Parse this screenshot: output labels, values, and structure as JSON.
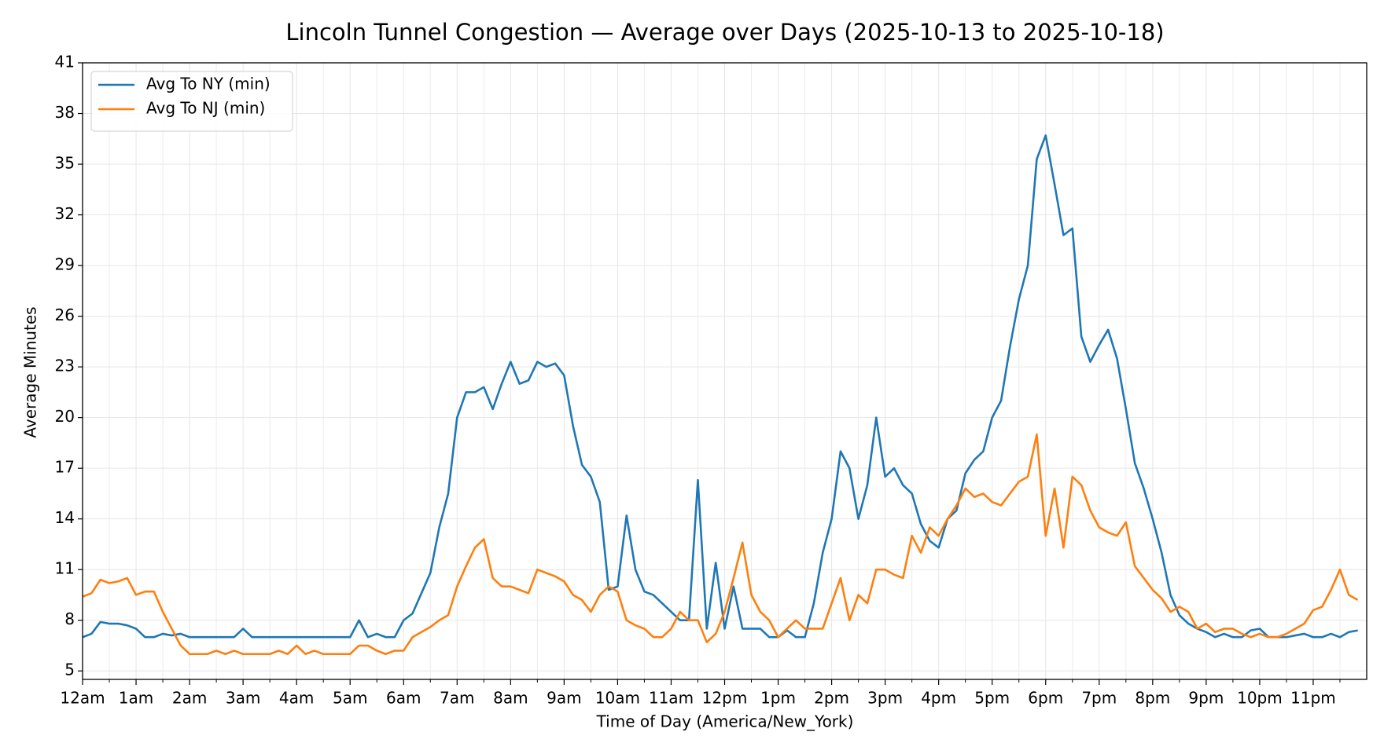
{
  "chart_data": {
    "type": "line",
    "title": "Lincoln Tunnel Congestion — Average over Days (2025-10-13 to 2025-10-18)",
    "xlabel": "Time of Day (America/New_York)",
    "ylabel": "Average Minutes",
    "x": [
      0,
      10,
      20,
      30,
      40,
      50,
      60,
      70,
      80,
      90,
      100,
      110,
      120,
      130,
      140,
      150,
      160,
      170,
      180,
      190,
      200,
      210,
      220,
      230,
      240,
      250,
      260,
      270,
      280,
      290,
      300,
      310,
      320,
      330,
      340,
      350,
      360,
      370,
      380,
      390,
      400,
      410,
      420,
      430,
      440,
      450,
      460,
      470,
      480,
      490,
      500,
      510,
      520,
      530,
      540,
      550,
      560,
      570,
      580,
      590,
      600,
      610,
      620,
      630,
      640,
      650,
      660,
      670,
      680,
      690,
      700,
      710,
      720,
      730,
      740,
      750,
      760,
      770,
      780,
      790,
      800,
      810,
      820,
      830,
      840,
      850,
      860,
      870,
      880,
      890,
      900,
      910,
      920,
      930,
      940,
      950,
      960,
      970,
      980,
      990,
      1000,
      1010,
      1020,
      1030,
      1040,
      1050,
      1060,
      1070,
      1080,
      1090,
      1100,
      1110,
      1120,
      1130,
      1140,
      1150,
      1160,
      1170,
      1180,
      1190,
      1200,
      1210,
      1220,
      1230,
      1240,
      1250,
      1260,
      1270,
      1280,
      1290,
      1300,
      1310,
      1320,
      1330,
      1340,
      1350,
      1360,
      1370,
      1380,
      1390,
      1400,
      1410,
      1420,
      1430
    ],
    "series": [
      {
        "name": "Avg To NY (min)",
        "color": "#1f77b4",
        "values": [
          7.0,
          7.2,
          7.9,
          7.8,
          7.8,
          7.7,
          7.5,
          7.0,
          7.0,
          7.2,
          7.1,
          7.2,
          7.0,
          7.0,
          7.0,
          7.0,
          7.0,
          7.0,
          7.5,
          7.0,
          7.0,
          7.0,
          7.0,
          7.0,
          7.0,
          7.0,
          7.0,
          7.0,
          7.0,
          7.0,
          7.0,
          8.0,
          7.0,
          7.2,
          7.0,
          7.0,
          8.0,
          8.4,
          9.6,
          10.8,
          13.5,
          15.5,
          20.0,
          21.5,
          21.5,
          21.8,
          20.5,
          22.0,
          23.3,
          22.0,
          22.2,
          23.3,
          23.0,
          23.2,
          22.5,
          19.5,
          17.2,
          16.5,
          15.0,
          9.8,
          10.0,
          14.2,
          11.0,
          9.7,
          9.5,
          9.0,
          8.5,
          8.0,
          8.0,
          16.3,
          7.5,
          11.4,
          7.5,
          10.0,
          7.5,
          7.5,
          7.5,
          7.0,
          7.0,
          7.4,
          7.0,
          7.0,
          9.0,
          12.0,
          14.0,
          18.0,
          17.0,
          14.0,
          16.0,
          20.0,
          16.5,
          17.0,
          16.0,
          15.5,
          13.7,
          12.7,
          12.3,
          14.0,
          14.5,
          16.7,
          17.5,
          18.0,
          20.0,
          21.0,
          24.2,
          27.0,
          29.0,
          35.3,
          36.7,
          33.8,
          30.8,
          31.2,
          24.8,
          23.3,
          24.3,
          25.2,
          23.5,
          20.5,
          17.3,
          15.8,
          14.0,
          12.0,
          9.5,
          8.3,
          7.8,
          7.5,
          7.3,
          7.0,
          7.2,
          7.0,
          7.0,
          7.4,
          7.5,
          7.0,
          7.0,
          7.0,
          7.1,
          7.2,
          7.0,
          7.0,
          7.2,
          7.0,
          7.3,
          7.4
        ]
      },
      {
        "name": "Avg To NJ (min)",
        "color": "#ff7f0e",
        "values": [
          9.4,
          9.6,
          10.4,
          10.2,
          10.3,
          10.5,
          9.5,
          9.7,
          9.7,
          8.5,
          7.5,
          6.5,
          6.0,
          6.0,
          6.0,
          6.2,
          6.0,
          6.2,
          6.0,
          6.0,
          6.0,
          6.0,
          6.2,
          6.0,
          6.5,
          6.0,
          6.2,
          6.0,
          6.0,
          6.0,
          6.0,
          6.5,
          6.5,
          6.2,
          6.0,
          6.2,
          6.2,
          7.0,
          7.3,
          7.6,
          8.0,
          8.3,
          10.0,
          11.2,
          12.3,
          12.8,
          10.5,
          10.0,
          10.0,
          9.8,
          9.6,
          11.0,
          10.8,
          10.6,
          10.3,
          9.5,
          9.2,
          8.5,
          9.5,
          10.0,
          9.7,
          8.0,
          7.7,
          7.5,
          7.0,
          7.0,
          7.5,
          8.5,
          8.0,
          8.0,
          6.7,
          7.2,
          8.5,
          10.5,
          12.6,
          9.5,
          8.5,
          8.0,
          7.0,
          7.5,
          8.0,
          7.5,
          7.5,
          7.5,
          9.0,
          10.5,
          8.0,
          9.5,
          9.0,
          11.0,
          11.0,
          10.7,
          10.5,
          13.0,
          12.0,
          13.5,
          13.0,
          14.0,
          14.8,
          15.8,
          15.3,
          15.5,
          15.0,
          14.8,
          15.5,
          16.2,
          16.5,
          19.0,
          13.0,
          15.8,
          12.3,
          16.5,
          16.0,
          14.5,
          13.5,
          13.2,
          13.0,
          13.8,
          11.2,
          10.5,
          9.8,
          9.3,
          8.5,
          8.8,
          8.5,
          7.5,
          7.8,
          7.3,
          7.5,
          7.5,
          7.2,
          7.0,
          7.2,
          7.0,
          7.0,
          7.2,
          7.5,
          7.8,
          8.6,
          8.8,
          9.8,
          11.0,
          9.5,
          9.2
        ]
      }
    ],
    "xlim": [
      0,
      1440
    ],
    "xticks": [
      {
        "value": 0,
        "label": "12am"
      },
      {
        "value": 60,
        "label": "1am"
      },
      {
        "value": 120,
        "label": "2am"
      },
      {
        "value": 180,
        "label": "3am"
      },
      {
        "value": 240,
        "label": "4am"
      },
      {
        "value": 300,
        "label": "5am"
      },
      {
        "value": 360,
        "label": "6am"
      },
      {
        "value": 420,
        "label": "7am"
      },
      {
        "value": 480,
        "label": "8am"
      },
      {
        "value": 540,
        "label": "9am"
      },
      {
        "value": 600,
        "label": "10am"
      },
      {
        "value": 660,
        "label": "11am"
      },
      {
        "value": 720,
        "label": "12pm"
      },
      {
        "value": 780,
        "label": "1pm"
      },
      {
        "value": 840,
        "label": "2pm"
      },
      {
        "value": 900,
        "label": "3pm"
      },
      {
        "value": 960,
        "label": "4pm"
      },
      {
        "value": 1020,
        "label": "5pm"
      },
      {
        "value": 1080,
        "label": "6pm"
      },
      {
        "value": 1140,
        "label": "7pm"
      },
      {
        "value": 1200,
        "label": "8pm"
      },
      {
        "value": 1260,
        "label": "9pm"
      },
      {
        "value": 1320,
        "label": "10pm"
      },
      {
        "value": 1380,
        "label": "11pm"
      }
    ],
    "xminorticks": [
      30,
      90,
      150,
      210,
      270,
      330,
      390,
      450,
      510,
      570,
      630,
      690,
      750,
      810,
      870,
      930,
      990,
      1050,
      1110,
      1170,
      1230,
      1290,
      1350,
      1410
    ],
    "ylim": [
      4.5,
      41
    ],
    "yticks": [
      5,
      8,
      11,
      14,
      17,
      20,
      23,
      26,
      29,
      32,
      35,
      38,
      41
    ],
    "grid": true,
    "legend": "upper left"
  }
}
